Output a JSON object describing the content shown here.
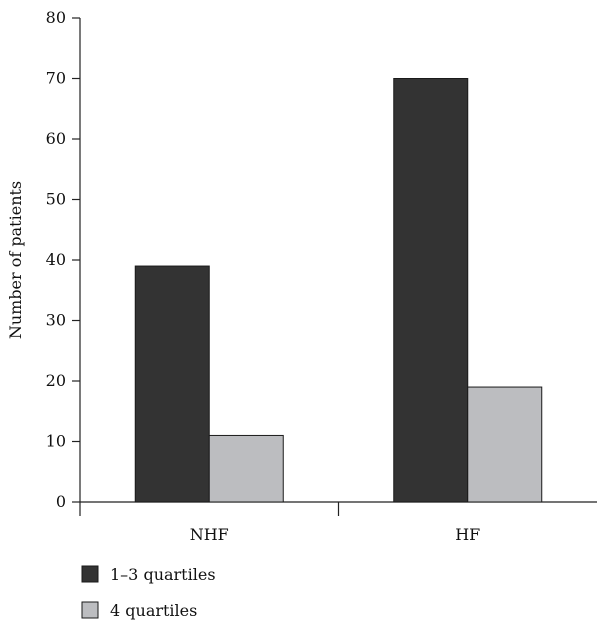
{
  "chart_data": {
    "type": "bar",
    "title": "",
    "xlabel": "",
    "ylabel": "Number of patients",
    "ylim": [
      0,
      80
    ],
    "yticks": [
      0,
      10,
      20,
      30,
      40,
      50,
      60,
      70,
      80
    ],
    "categories": [
      "NHF",
      "HF"
    ],
    "series": [
      {
        "name": "1–3 quartiles",
        "values": [
          39,
          70
        ],
        "color": "#333333"
      },
      {
        "name": "4 quartiles",
        "values": [
          11,
          19
        ],
        "color": "#bcbdc0"
      }
    ],
    "grid": false,
    "legend_position": "bottom-left"
  }
}
